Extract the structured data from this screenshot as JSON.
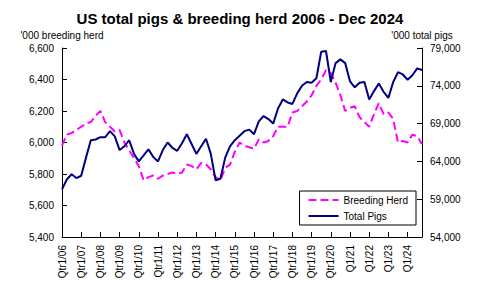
{
  "chart_data": {
    "type": "line",
    "title": "US total pigs & breeding herd 2006 - Dec 2024",
    "y_label": "'000 breeding herd",
    "y2_label": "'000 total pigs",
    "categories": [
      "Qtr1/06",
      null,
      null,
      null,
      "Qtr1/07",
      null,
      null,
      null,
      "Qtr1/08",
      null,
      null,
      null,
      "Qtr1/09",
      null,
      null,
      null,
      "Qtr1/10",
      null,
      null,
      null,
      "Qtr1/11",
      null,
      null,
      null,
      "Qtr1/12",
      null,
      null,
      null,
      "Qtr1/13",
      null,
      null,
      null,
      "Qtr1/14",
      null,
      null,
      null,
      "Qtr1/15",
      null,
      null,
      null,
      "Qtr1/16",
      null,
      null,
      null,
      "Qtr1/17",
      null,
      null,
      null,
      "Qtr1/18",
      null,
      null,
      null,
      "Qtr1/19",
      null,
      null,
      null,
      "Qtr1/20",
      null,
      null,
      null,
      "Q1/21",
      null,
      null,
      null,
      "Q1/22",
      null,
      null,
      null,
      "Q1/23",
      null,
      null,
      null,
      "Q1/24",
      null,
      null,
      null
    ],
    "series": [
      {
        "name": "Breeding Herd",
        "color": "#ff00ff",
        "line_style": "dashed",
        "axis": "y",
        "values": [
          5980,
          6050,
          6060,
          6080,
          6100,
          6120,
          6130,
          6170,
          6200,
          6130,
          6100,
          6070,
          6080,
          6000,
          5950,
          5900,
          5850,
          5760,
          5780,
          5790,
          5770,
          5790,
          5800,
          5810,
          5800,
          5810,
          5860,
          5850,
          5830,
          5870,
          5860,
          5830,
          5780,
          5760,
          5840,
          5860,
          5940,
          6000,
          5980,
          5970,
          5960,
          6020,
          6000,
          6010,
          6040,
          6100,
          6100,
          6100,
          6190,
          6200,
          6230,
          6260,
          6300,
          6360,
          6400,
          6460,
          6440,
          6380,
          6300,
          6200,
          6220,
          6230,
          6160,
          6130,
          6100,
          6180,
          6250,
          6180,
          6190,
          6150,
          6000,
          6010,
          6000,
          6050,
          6040,
          5990
        ]
      },
      {
        "name": "Total Pigs",
        "color": "#000080",
        "line_style": "solid",
        "axis": "y2",
        "values": [
          60300,
          61600,
          62300,
          61800,
          62100,
          64500,
          66800,
          66900,
          67200,
          67200,
          68000,
          67300,
          65500,
          66000,
          66800,
          65000,
          64000,
          64800,
          65600,
          64600,
          64000,
          65500,
          66500,
          65800,
          65400,
          66400,
          67600,
          66300,
          65000,
          66000,
          67000,
          65000,
          61500,
          61700,
          64500,
          66000,
          66800,
          67400,
          68000,
          68200,
          67600,
          69300,
          70000,
          69600,
          69000,
          71000,
          72200,
          71800,
          71600,
          73000,
          74000,
          74500,
          74400,
          75000,
          78500,
          78600,
          74500,
          77000,
          77500,
          77000,
          74600,
          73800,
          74400,
          74500,
          72200,
          73300,
          74300,
          73200,
          72400,
          74500,
          75800,
          75500,
          74800,
          75400,
          76300,
          76100
        ]
      }
    ],
    "ylim": [
      5400,
      6600
    ],
    "yticks": [
      {
        "value": 5400,
        "label": "5,400"
      },
      {
        "value": 5600,
        "label": "5,600"
      },
      {
        "value": 5800,
        "label": "5,800"
      },
      {
        "value": 6000,
        "label": "6,000"
      },
      {
        "value": 6200,
        "label": "6,200"
      },
      {
        "value": 6400,
        "label": "6,400"
      },
      {
        "value": 6600,
        "label": "6,600"
      }
    ],
    "y2lim": [
      54000,
      79000
    ],
    "y2ticks": [
      {
        "value": 54000,
        "label": "54,000"
      },
      {
        "value": 59000,
        "label": "59,000"
      },
      {
        "value": 64000,
        "label": "64,000"
      },
      {
        "value": 69000,
        "label": "69,000"
      },
      {
        "value": 74000,
        "label": "74,000"
      },
      {
        "value": 79000,
        "label": "79,000"
      }
    ],
    "grid": false,
    "legend": "lower right"
  }
}
